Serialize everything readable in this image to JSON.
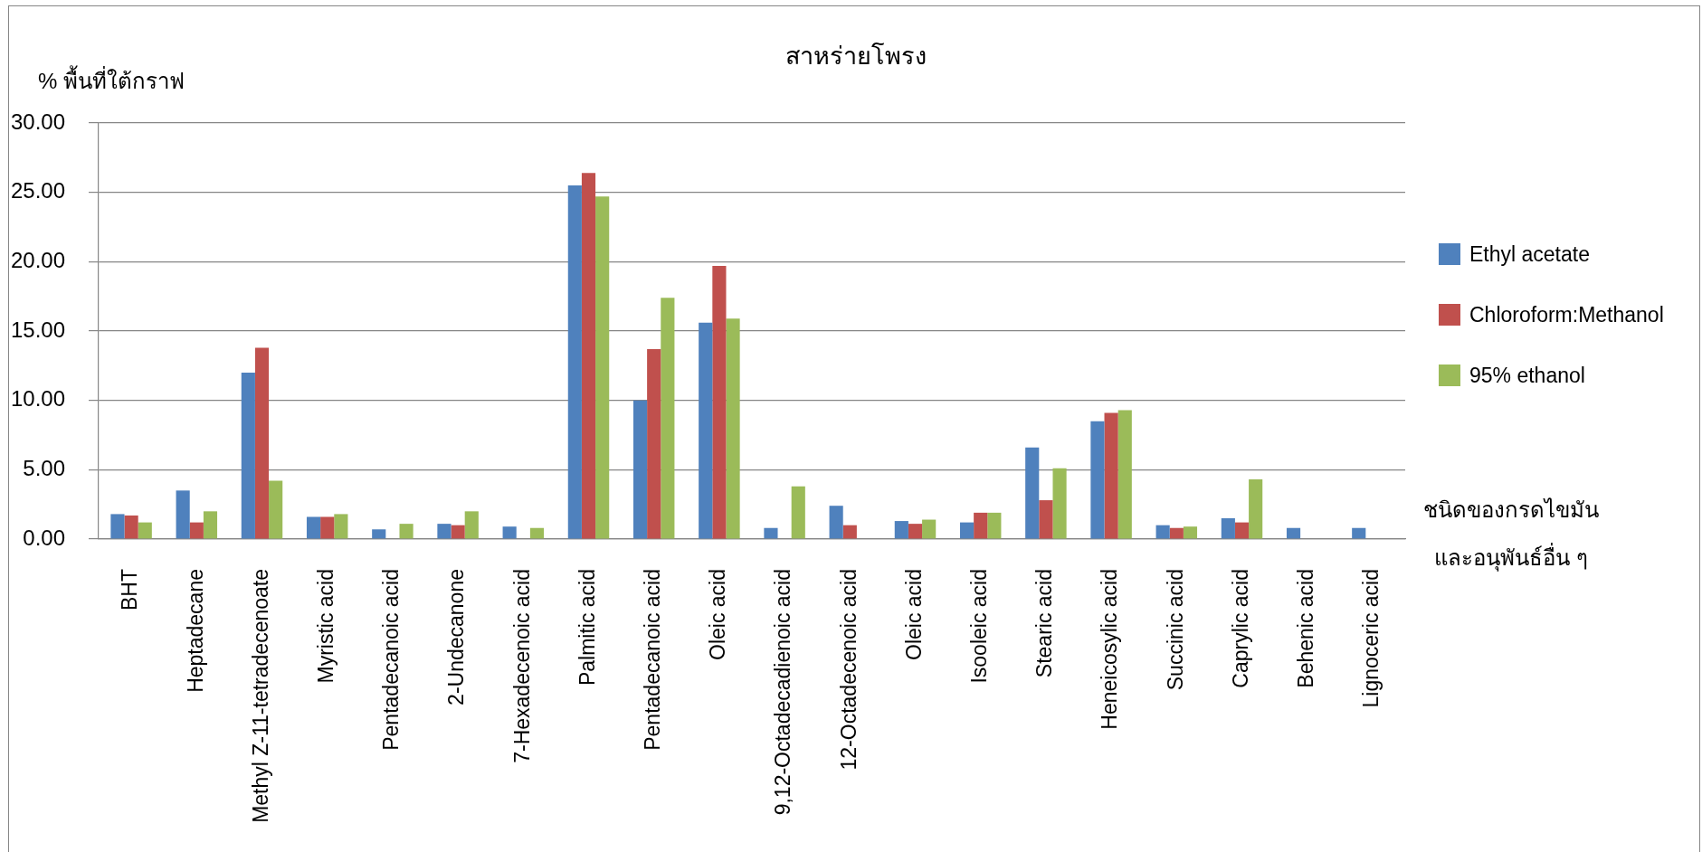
{
  "chart_data": {
    "type": "bar",
    "title": "สาหร่ายโพรง",
    "xlabel": "ชนิดของกรดไขมัน\nและอนุพันธ์อื่น ๆ",
    "ylabel": "% พื้นที่ใต้กราฟ",
    "categories": [
      "BHT",
      "Heptadecane",
      "Methyl Z-11-tetradecenoate",
      "Myristic acid",
      "Pentadecanoic acid",
      "2-Undecanone",
      "7-Hexadecenoic acid",
      "Palmitic acid",
      "Pentadecanoic acid",
      "Oleic acid",
      "9,12-Octadecadienoic acid",
      "12-Octadecenoic acid",
      "Oleic acid",
      "Isooleic acid",
      "Stearic acid",
      "Heneicosylic acid",
      "Succinic acid",
      "Caprylic acid",
      "Behenic acid",
      "Lignoceric acid"
    ],
    "series": [
      {
        "name": "Ethyl acetate",
        "color": "#4f81bd",
        "values": [
          1.8,
          3.5,
          12.0,
          1.6,
          0.7,
          1.1,
          0.9,
          25.5,
          10.0,
          15.6,
          0.8,
          2.4,
          1.3,
          1.2,
          6.6,
          8.5,
          1.0,
          1.5,
          0.8,
          0.8
        ]
      },
      {
        "name": "Chloroform:Methanol",
        "color": "#c0504d",
        "values": [
          1.7,
          1.2,
          13.8,
          1.6,
          null,
          1.0,
          null,
          26.4,
          13.7,
          19.7,
          null,
          1.0,
          1.1,
          1.9,
          2.8,
          9.1,
          0.8,
          1.2,
          null,
          null
        ]
      },
      {
        "name": "95% ethanol",
        "color": "#9bbb59",
        "values": [
          1.2,
          2.0,
          4.2,
          1.8,
          1.1,
          2.0,
          0.8,
          24.7,
          17.4,
          15.9,
          3.8,
          null,
          1.4,
          1.9,
          5.1,
          9.3,
          0.9,
          4.3,
          null,
          null
        ]
      }
    ],
    "ylim": [
      0,
      30
    ],
    "yticks": [
      {
        "value": 0,
        "label": "0.00"
      },
      {
        "value": 5,
        "label": "5.00"
      },
      {
        "value": 10,
        "label": "10.00"
      },
      {
        "value": 15,
        "label": "15.00"
      },
      {
        "value": 20,
        "label": "20.00"
      },
      {
        "value": 25,
        "label": "25.00"
      },
      {
        "value": 30,
        "label": "30.00"
      }
    ],
    "grid": "y",
    "legend": "right"
  }
}
